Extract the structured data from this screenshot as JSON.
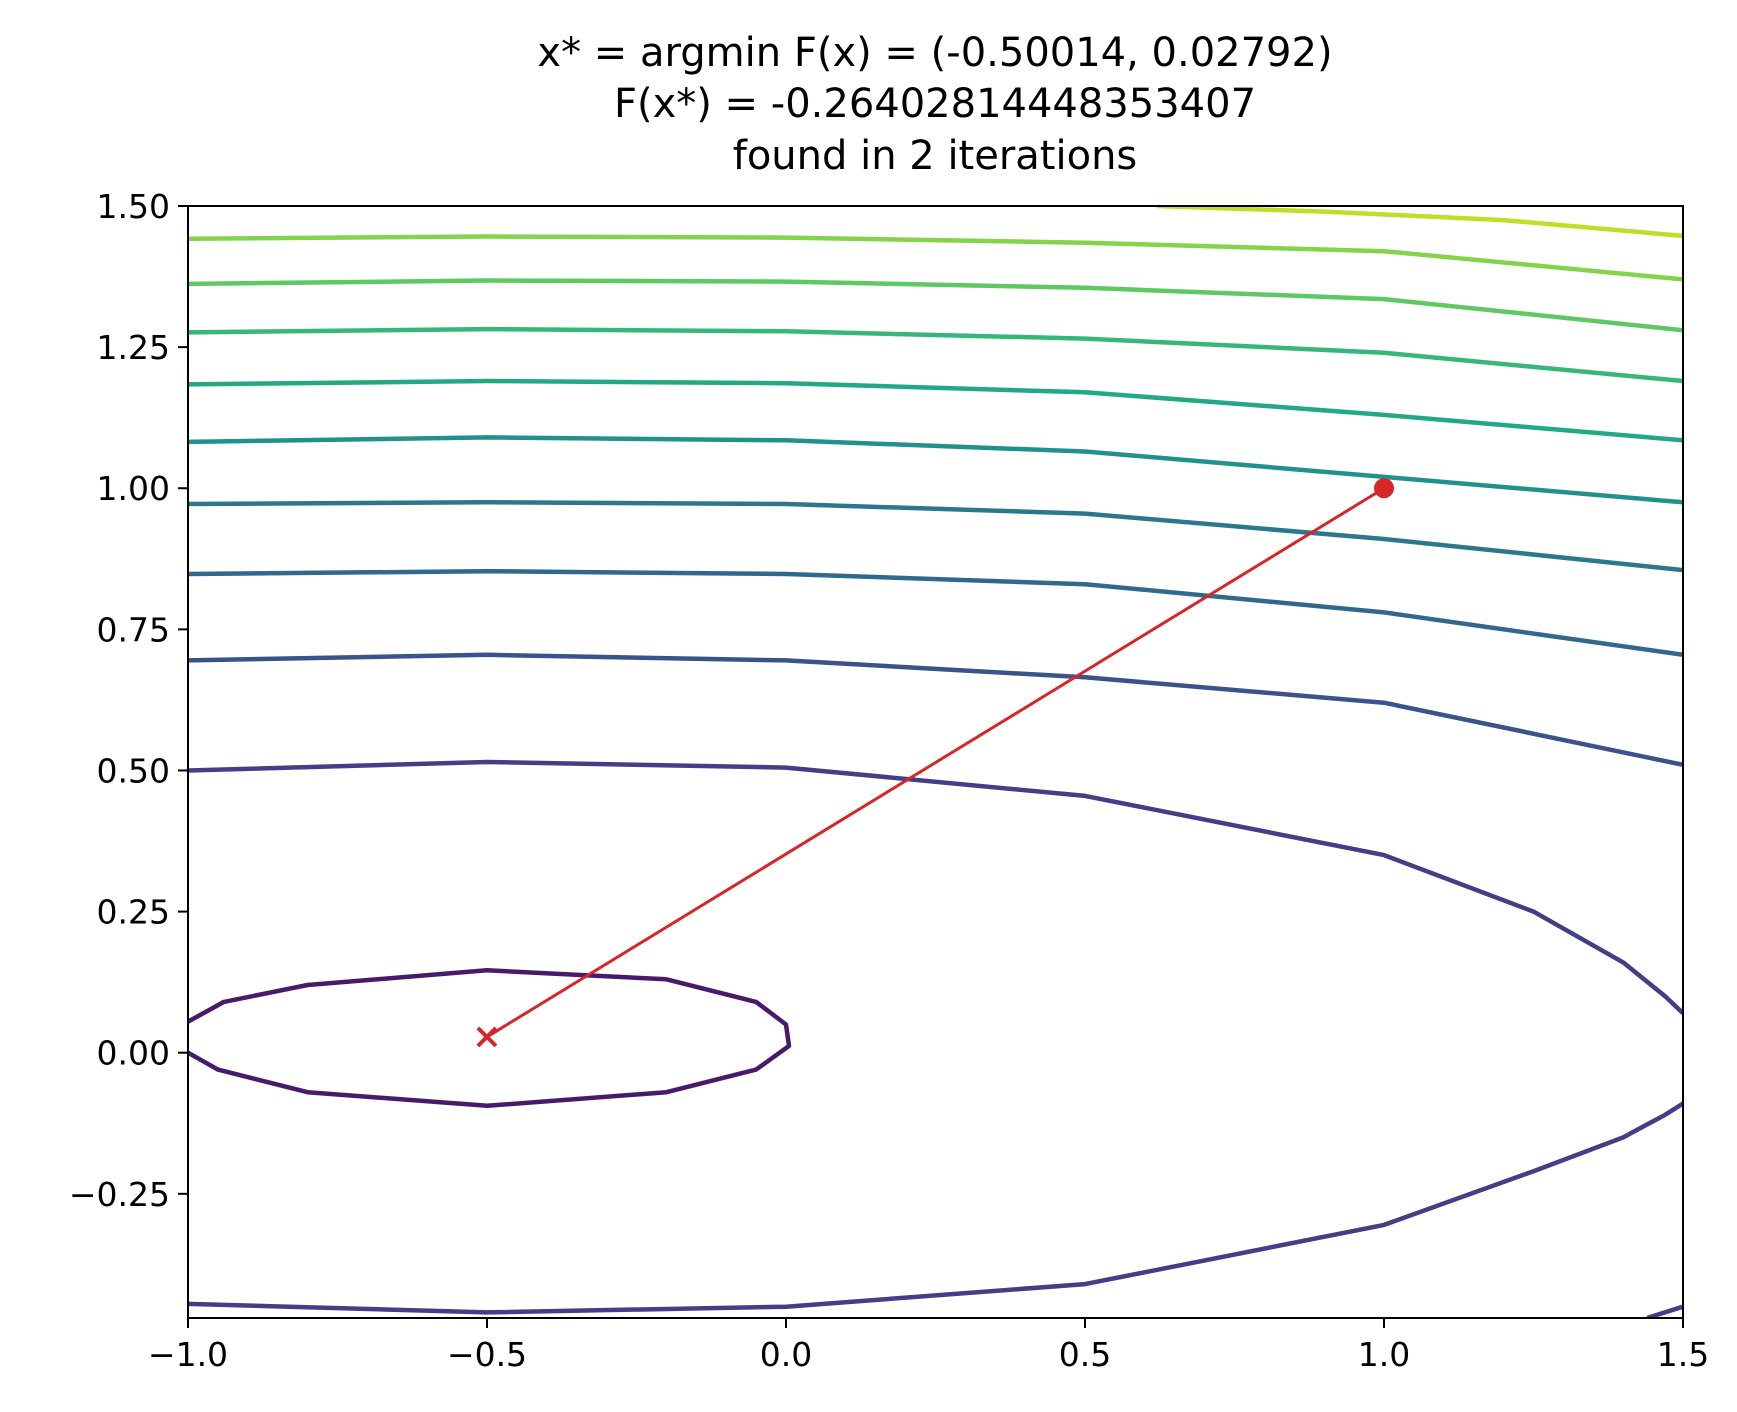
{
  "chart_data": {
    "type": "line",
    "title_lines": [
      "x* = argmin F(x) = (-0.50014, 0.02792)",
      "F(x*) = -0.26402814448353407",
      "found in 2 iterations"
    ],
    "xlabel": "",
    "ylabel": "",
    "xlim": [
      -1.0,
      1.5
    ],
    "ylim": [
      -0.47,
      1.5
    ],
    "xticks": [
      {
        "value": -1.0,
        "label": "−1.0"
      },
      {
        "value": -0.5,
        "label": "−0.5"
      },
      {
        "value": 0.0,
        "label": "0.0"
      },
      {
        "value": 0.5,
        "label": "0.5"
      },
      {
        "value": 1.0,
        "label": "1.0"
      },
      {
        "value": 1.5,
        "label": "1.5"
      }
    ],
    "yticks": [
      {
        "value": 1.5,
        "label": "1.50"
      },
      {
        "value": 1.25,
        "label": "1.25"
      },
      {
        "value": 1.0,
        "label": "1.00"
      },
      {
        "value": 0.75,
        "label": "0.75"
      },
      {
        "value": 0.5,
        "label": "0.50"
      },
      {
        "value": 0.25,
        "label": "0.25"
      },
      {
        "value": 0.0,
        "label": "0.00"
      },
      {
        "value": -0.25,
        "label": "−0.25"
      }
    ],
    "grid": false,
    "contours": [
      {
        "color": "#481a6c",
        "points": [
          [
            -1.0,
            0.055
          ],
          [
            -0.94,
            0.09
          ],
          [
            -0.8,
            0.12
          ],
          [
            -0.5,
            0.146
          ],
          [
            -0.2,
            0.13
          ],
          [
            -0.05,
            0.09
          ],
          [
            0.0,
            0.05
          ],
          [
            0.005,
            0.012
          ],
          [
            -0.05,
            -0.03
          ],
          [
            -0.2,
            -0.07
          ],
          [
            -0.5,
            -0.094
          ],
          [
            -0.8,
            -0.07
          ],
          [
            -0.95,
            -0.03
          ],
          [
            -1.0,
            0.0
          ]
        ]
      },
      {
        "color": "#433e85",
        "points": [
          [
            -1.0,
            0.5
          ],
          [
            -0.5,
            0.515
          ],
          [
            0.0,
            0.505
          ],
          [
            0.5,
            0.455
          ],
          [
            1.0,
            0.35
          ],
          [
            1.25,
            0.25
          ],
          [
            1.4,
            0.16
          ],
          [
            1.47,
            0.1
          ],
          [
            1.5,
            0.07
          ]
        ]
      },
      {
        "color": "#433e85",
        "points": [
          [
            -1.0,
            -0.445
          ],
          [
            -0.5,
            -0.46
          ],
          [
            0.0,
            -0.45
          ],
          [
            0.5,
            -0.41
          ],
          [
            1.0,
            -0.305
          ],
          [
            1.25,
            -0.21
          ],
          [
            1.4,
            -0.15
          ],
          [
            1.47,
            -0.11
          ],
          [
            1.5,
            -0.09
          ]
        ]
      },
      {
        "color": "#433e85",
        "points": [
          [
            1.44,
            -0.47
          ],
          [
            1.5,
            -0.45
          ]
        ]
      },
      {
        "color": "#3b528b",
        "points": [
          [
            -1.0,
            0.695
          ],
          [
            -0.5,
            0.705
          ],
          [
            0.0,
            0.695
          ],
          [
            0.5,
            0.665
          ],
          [
            1.0,
            0.62
          ],
          [
            1.5,
            0.51
          ]
        ]
      },
      {
        "color": "#31688e",
        "points": [
          [
            -1.0,
            0.848
          ],
          [
            -0.5,
            0.853
          ],
          [
            0.0,
            0.848
          ],
          [
            0.5,
            0.83
          ],
          [
            1.0,
            0.78
          ],
          [
            1.5,
            0.705
          ]
        ]
      },
      {
        "color": "#2a788e",
        "points": [
          [
            -1.0,
            0.972
          ],
          [
            -0.5,
            0.975
          ],
          [
            0.0,
            0.972
          ],
          [
            0.5,
            0.955
          ],
          [
            1.0,
            0.91
          ],
          [
            1.5,
            0.855
          ]
        ]
      },
      {
        "color": "#21918c",
        "points": [
          [
            -1.0,
            1.082
          ],
          [
            -0.5,
            1.09
          ],
          [
            0.0,
            1.085
          ],
          [
            0.5,
            1.065
          ],
          [
            1.0,
            1.02
          ],
          [
            1.5,
            0.975
          ]
        ]
      },
      {
        "color": "#22a884",
        "points": [
          [
            -1.0,
            1.184
          ],
          [
            -0.5,
            1.19
          ],
          [
            0.0,
            1.186
          ],
          [
            0.5,
            1.17
          ],
          [
            1.0,
            1.13
          ],
          [
            1.5,
            1.085
          ]
        ]
      },
      {
        "color": "#35b779",
        "points": [
          [
            -1.0,
            1.276
          ],
          [
            -0.5,
            1.282
          ],
          [
            0.0,
            1.278
          ],
          [
            0.5,
            1.265
          ],
          [
            1.0,
            1.24
          ],
          [
            1.5,
            1.19
          ]
        ]
      },
      {
        "color": "#5ec962",
        "points": [
          [
            -1.0,
            1.362
          ],
          [
            -0.5,
            1.368
          ],
          [
            0.0,
            1.366
          ],
          [
            0.5,
            1.355
          ],
          [
            1.0,
            1.335
          ],
          [
            1.5,
            1.28
          ]
        ]
      },
      {
        "color": "#84d44b",
        "points": [
          [
            -1.0,
            1.442
          ],
          [
            -0.5,
            1.446
          ],
          [
            0.0,
            1.444
          ],
          [
            0.5,
            1.435
          ],
          [
            1.0,
            1.42
          ],
          [
            1.5,
            1.37
          ]
        ]
      },
      {
        "color": "#bddf26",
        "points": [
          [
            0.62,
            1.5
          ],
          [
            0.9,
            1.49
          ],
          [
            1.2,
            1.475
          ],
          [
            1.5,
            1.447
          ]
        ]
      }
    ],
    "path": {
      "color": "#d62728",
      "points": [
        [
          1.0,
          1.0
        ],
        [
          -0.50014,
          0.02792
        ]
      ],
      "start_marker": "circle",
      "end_marker": "x"
    }
  }
}
